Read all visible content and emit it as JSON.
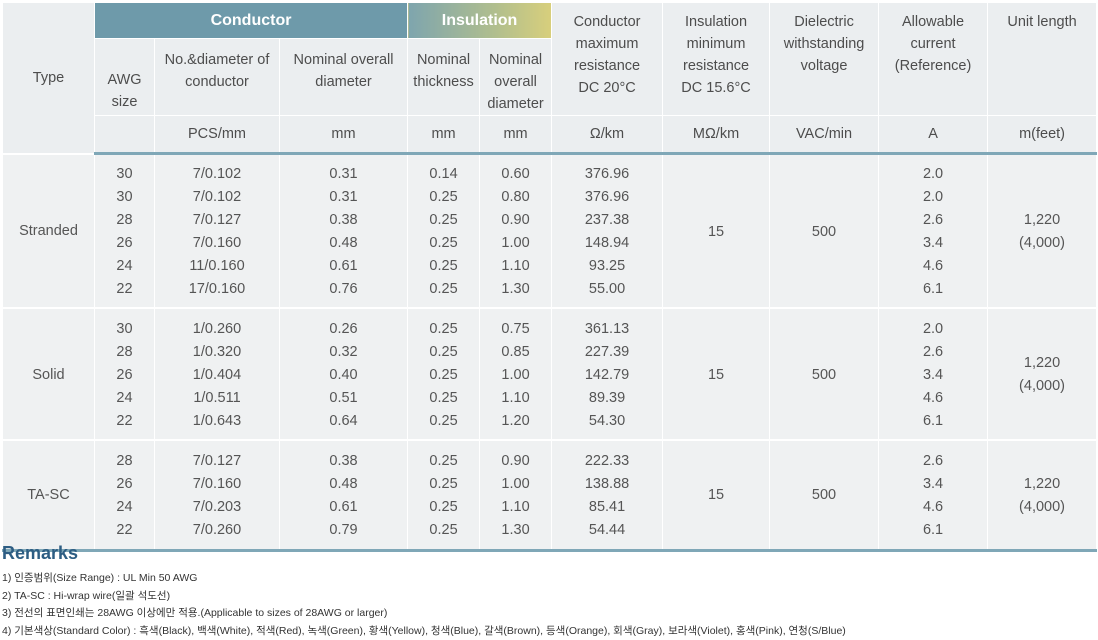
{
  "header": {
    "type": "Type",
    "group_conductor": "Conductor",
    "group_insulation": "Insulation",
    "awg_size": "AWG size",
    "no_diameter_conductor": "No.&diameter of conductor",
    "nominal_overall_diameter": "Nominal overall diameter",
    "nominal_thickness": "Nominal thickness",
    "nominal_overall_diameter_ins": "Nominal overall diameter",
    "conductor_max_resistance": [
      "Conductor",
      "maximum",
      "resistance",
      "DC 20°C"
    ],
    "insulation_min_resistance": [
      "Insulation",
      "minimum",
      "resistance",
      "DC 15.6°C"
    ],
    "dielectric_voltage": [
      "Dielectric",
      "withstanding",
      "voltage"
    ],
    "allowable_current": [
      "Allowable",
      "current",
      "(Reference)"
    ],
    "unit_length": "Unit length",
    "units": {
      "pcs_mm": "PCS/mm",
      "mm1": "mm",
      "mm2": "mm",
      "mm3": "mm",
      "ohm_km": "Ω/km",
      "mohm_km": "MΩ/km",
      "vac_min": "VAC/min",
      "amp": "A",
      "m_feet": "m(feet)"
    }
  },
  "groups": [
    {
      "type": "Stranded",
      "awg": [
        "30",
        "30",
        "28",
        "26",
        "24",
        "22"
      ],
      "no_diameter": [
        "7/0.102",
        "7/0.102",
        "7/0.127",
        "7/0.160",
        "11/0.160",
        "17/0.160"
      ],
      "conductor_diameter": [
        "0.31",
        "0.31",
        "0.38",
        "0.48",
        "0.61",
        "0.76"
      ],
      "insulation_thickness": [
        "0.14",
        "0.25",
        "0.25",
        "0.25",
        "0.25",
        "0.25"
      ],
      "overall_diameter": [
        "0.60",
        "0.80",
        "0.90",
        "1.00",
        "1.10",
        "1.30"
      ],
      "max_resistance": [
        "376.96",
        "376.96",
        "237.38",
        "148.94",
        "93.25",
        "55.00"
      ],
      "insulation_resistance": "15",
      "dielectric_voltage": "500",
      "allowable_current": [
        "2.0",
        "2.0",
        "2.6",
        "3.4",
        "4.6",
        "6.1"
      ],
      "unit_length": [
        "1,220",
        "(4,000)"
      ]
    },
    {
      "type": "Solid",
      "awg": [
        "30",
        "28",
        "26",
        "24",
        "22"
      ],
      "no_diameter": [
        "1/0.260",
        "1/0.320",
        "1/0.404",
        "1/0.511",
        "1/0.643"
      ],
      "conductor_diameter": [
        "0.26",
        "0.32",
        "0.40",
        "0.51",
        "0.64"
      ],
      "insulation_thickness": [
        "0.25",
        "0.25",
        "0.25",
        "0.25",
        "0.25"
      ],
      "overall_diameter": [
        "0.75",
        "0.85",
        "1.00",
        "1.10",
        "1.20"
      ],
      "max_resistance": [
        "361.13",
        "227.39",
        "142.79",
        "89.39",
        "54.30"
      ],
      "insulation_resistance": "15",
      "dielectric_voltage": "500",
      "allowable_current": [
        "2.0",
        "2.6",
        "3.4",
        "4.6",
        "6.1"
      ],
      "unit_length": [
        "1,220",
        "(4,000)"
      ]
    },
    {
      "type": "TA-SC",
      "awg": [
        "28",
        "26",
        "24",
        "22"
      ],
      "no_diameter": [
        "7/0.127",
        "7/0.160",
        "7/0.203",
        "7/0.260"
      ],
      "conductor_diameter": [
        "0.38",
        "0.48",
        "0.61",
        "0.79"
      ],
      "insulation_thickness": [
        "0.25",
        "0.25",
        "0.25",
        "0.25"
      ],
      "overall_diameter": [
        "0.90",
        "1.00",
        "1.10",
        "1.30"
      ],
      "max_resistance": [
        "222.33",
        "138.88",
        "85.41",
        "54.44"
      ],
      "insulation_resistance": "15",
      "dielectric_voltage": "500",
      "allowable_current": [
        "2.6",
        "3.4",
        "4.6",
        "6.1"
      ],
      "unit_length": [
        "1,220",
        "(4,000)"
      ]
    }
  ],
  "remarks": {
    "title": "Remarks",
    "items": [
      "1) 인증범위(Size Range) : UL Min 50 AWG",
      "2) TA-SC : Hi-wrap wire(일괄 석도선)",
      "3) 전선의 표면인쇄는 28AWG 이상에만 적용.(Applicable to sizes of 28AWG or larger)",
      "4) 기본색상(Standard Color) : 흑색(Black), 백색(White), 적색(Red), 녹색(Green), 황색(Yellow), 청색(Blue), 갈색(Brown), 등색(Orange), 회색(Gray), 보라색(Violet), 홍색(Pink), 연청(S/Blue)"
    ]
  },
  "colors": {
    "conductor_header": "#6e9aaa",
    "insulation_header_start": "#7ea5ae",
    "insulation_header_end": "#d8cf7c",
    "header_bg": "#ebeef0",
    "body_bg": "#eff1f2",
    "accent_line": "#7fa7b7",
    "remarks_title": "#2d5d83"
  }
}
